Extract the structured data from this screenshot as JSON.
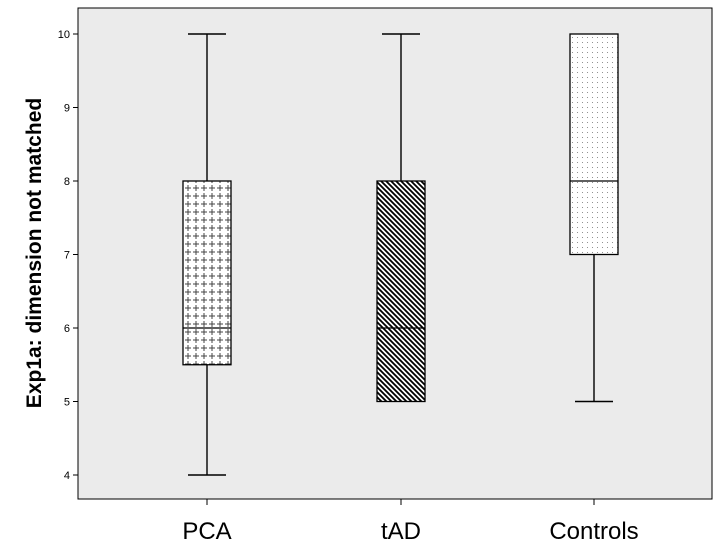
{
  "chart_data": {
    "type": "box",
    "title": "",
    "xlabel": "",
    "ylabel": "Exp1a: dimension not matched",
    "ylim": [
      3.8,
      10.3
    ],
    "yticks": [
      4,
      5,
      6,
      7,
      8,
      9,
      10
    ],
    "ytick_labels": [
      "4",
      "5",
      "6",
      "7",
      "8",
      "9",
      "10"
    ],
    "categories": [
      "PCA",
      "tAD",
      "Controls"
    ],
    "grid": false,
    "series": [
      {
        "category": "PCA",
        "min": 4,
        "q1": 5.5,
        "median": 6,
        "q3": 8,
        "max": 10,
        "fill_pattern": "cross-dots"
      },
      {
        "category": "tAD",
        "min": 5,
        "q1": 5,
        "median": 6,
        "q3": 8,
        "max": 10,
        "fill_pattern": "diagonal-hatch"
      },
      {
        "category": "Controls",
        "min": 5,
        "q1": 7,
        "median": 8,
        "q3": 10,
        "max": 10,
        "fill_pattern": "dots"
      }
    ],
    "colors": {
      "plot_background": "#ebebeb",
      "frame": "#000000",
      "box_stroke": "#000000",
      "box_fill": "#ffffff"
    }
  }
}
